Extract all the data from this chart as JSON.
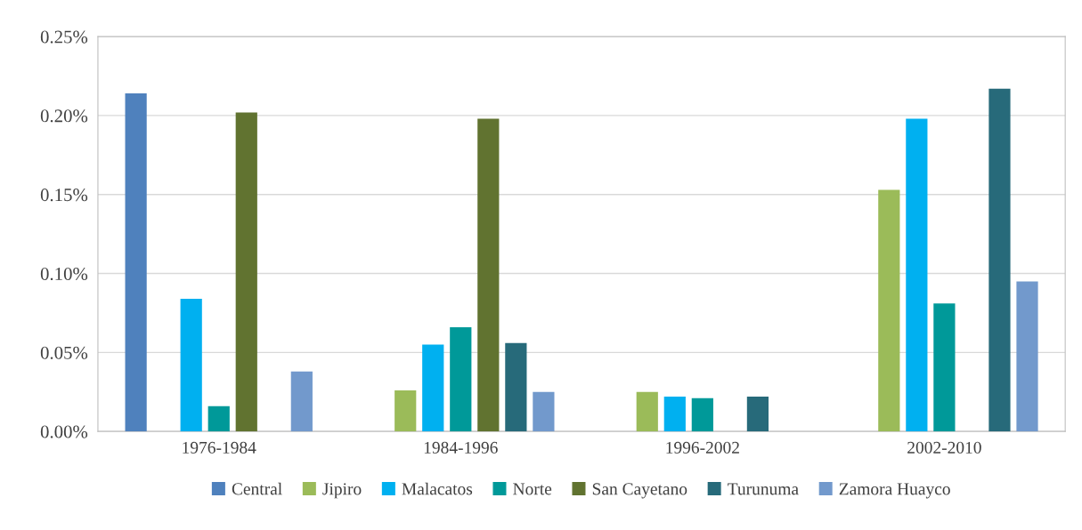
{
  "chart_data": {
    "type": "bar",
    "categories": [
      "1976-1984",
      "1984-1996",
      "1996-2002",
      "2002-2010"
    ],
    "series": [
      {
        "name": "Central",
        "color": "#4f81bd",
        "values": [
          0.214,
          null,
          null,
          null
        ]
      },
      {
        "name": "Jipiro",
        "color": "#9bbb59",
        "values": [
          null,
          0.026,
          0.025,
          0.153
        ]
      },
      {
        "name": "Malacatos",
        "color": "#00b0f0",
        "values": [
          0.084,
          0.055,
          0.022,
          0.198
        ]
      },
      {
        "name": "Norte",
        "color": "#009999",
        "values": [
          0.016,
          0.066,
          0.021,
          0.081
        ]
      },
      {
        "name": "San Cayetano",
        "color": "#617330",
        "values": [
          0.202,
          0.198,
          null,
          null
        ]
      },
      {
        "name": "Turunuma",
        "color": "#276a7a",
        "values": [
          null,
          0.056,
          0.022,
          0.217
        ]
      },
      {
        "name": "Zamora Huayco",
        "color": "#7299cc",
        "values": [
          0.038,
          0.025,
          null,
          0.095
        ]
      }
    ],
    "ylim": [
      0,
      0.25
    ],
    "yticks": [
      {
        "value": 0,
        "label": "0.00%"
      },
      {
        "value": 0.05,
        "label": "0.05%"
      },
      {
        "value": 0.1,
        "label": "0.10%"
      },
      {
        "value": 0.15,
        "label": "0.15%"
      },
      {
        "value": 0.2,
        "label": "0.20%"
      },
      {
        "value": 0.25,
        "label": "0.25%"
      }
    ],
    "grid": "y",
    "legend": "bottom"
  }
}
